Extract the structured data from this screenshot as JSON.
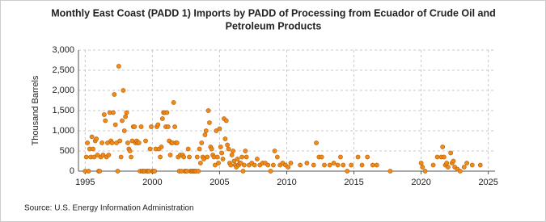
{
  "chart_data": {
    "type": "scatter",
    "title": [
      "Monthly East Coast (PADD 1) Imports by PADD of Processing from Ecuador of Crude Oil and",
      "Petroleum Products"
    ],
    "y_label": "Thousand Barrels",
    "source": "Source: U.S. Energy Information Administration",
    "color": "#f08a1c",
    "grid": true,
    "xlim": [
      1994.5,
      2025.5
    ],
    "ylim": [
      0,
      3000
    ],
    "xticks": [
      1995,
      2000,
      2005,
      2010,
      2015,
      2020,
      2025
    ],
    "yticks": [
      0,
      500,
      {
        "value": 1000,
        "label": "1,000"
      },
      {
        "value": 1500,
        "label": "1,500"
      },
      {
        "value": 2000,
        "label": "2,000"
      },
      {
        "value": 2500,
        "label": "2,500"
      },
      {
        "value": 3000,
        "label": "3,000"
      }
    ],
    "x": [
      1995,
      1995.083,
      1995.167,
      1995.25,
      1995.333,
      1995.417,
      1995.5,
      1995.583,
      1995.667,
      1995.75,
      1995.833,
      1995.917,
      1996,
      1996.083,
      1996.167,
      1996.25,
      1996.333,
      1996.417,
      1996.5,
      1996.583,
      1996.667,
      1996.75,
      1996.833,
      1996.917,
      1997,
      1997.083,
      1997.167,
      1997.25,
      1997.333,
      1997.417,
      1997.5,
      1997.583,
      1997.667,
      1997.75,
      1997.833,
      1997.917,
      1998,
      1998.083,
      1998.167,
      1998.25,
      1998.333,
      1998.417,
      1998.5,
      1998.583,
      1998.667,
      1998.75,
      1998.833,
      1998.917,
      1999,
      1999.083,
      1999.167,
      1999.25,
      1999.333,
      1999.417,
      1999.5,
      1999.583,
      1999.667,
      1999.75,
      1999.833,
      1999.917,
      2000,
      2000.083,
      2000.167,
      2000.25,
      2000.333,
      2000.417,
      2000.5,
      2000.583,
      2000.667,
      2000.75,
      2000.833,
      2000.917,
      2001,
      2001.083,
      2001.167,
      2001.25,
      2001.333,
      2001.417,
      2001.5,
      2001.583,
      2001.667,
      2001.75,
      2001.833,
      2001.917,
      2002,
      2002.083,
      2002.167,
      2002.25,
      2002.333,
      2002.417,
      2002.5,
      2002.583,
      2002.667,
      2002.75,
      2002.833,
      2002.917,
      2003,
      2003.083,
      2003.167,
      2003.25,
      2003.333,
      2003.417,
      2003.5,
      2003.583,
      2003.667,
      2003.75,
      2003.833,
      2003.917,
      2004,
      2004.083,
      2004.167,
      2004.25,
      2004.333,
      2004.417,
      2004.5,
      2004.583,
      2004.667,
      2004.75,
      2004.833,
      2004.917,
      2005,
      2005.083,
      2005.167,
      2005.25,
      2005.333,
      2005.417,
      2005.5,
      2005.583,
      2005.667,
      2005.75,
      2005.833,
      2005.917,
      2006,
      2006.083,
      2006.167,
      2006.25,
      2006.333,
      2006.417,
      2006.5,
      2006.583,
      2006.667,
      2006.75,
      2006.833,
      2006.917,
      2007.0,
      2007.2,
      2007.4,
      2007.6,
      2007.8,
      2008.0,
      2008.2,
      2008.4,
      2008.6,
      2008.8,
      2009.0,
      2009.1,
      2009.3,
      2009.5,
      2009.7,
      2009.9,
      2010.1,
      2010.3,
      2011.0,
      2011.5,
      2012.0,
      2012.2,
      2012.4,
      2012.6,
      2012.8,
      2013.2,
      2013.5,
      2013.8,
      2014.0,
      2014.2,
      2014.5,
      2014.8,
      2015.3,
      2015.6,
      2016.0,
      2016.4,
      2016.7,
      2017.7,
      2020.0,
      2020.1,
      2020.3,
      2020.9,
      2021.2,
      2021.5,
      2021.6,
      2021.7,
      2021.8,
      2021.9,
      2022.0,
      2022.2,
      2022.3,
      2022.4,
      2022.5,
      2022.7,
      2022.9,
      2023.2,
      2023.4,
      2023.8,
      2024.4
    ],
    "values": [
      0,
      350,
      700,
      0,
      550,
      350,
      850,
      550,
      350,
      750,
      800,
      400,
      0,
      0,
      350,
      700,
      400,
      1400,
      1250,
      350,
      700,
      400,
      1450,
      750,
      700,
      1450,
      1900,
      1150,
      700,
      0,
      2600,
      750,
      350,
      1250,
      2000,
      1000,
      1350,
      1450,
      700,
      550,
      500,
      350,
      750,
      1100,
      1100,
      700,
      750,
      700,
      700,
      0,
      1100,
      0,
      0,
      0,
      750,
      0,
      0,
      0,
      550,
      1100,
      0,
      0,
      0,
      550,
      1100,
      1150,
      550,
      350,
      600,
      1300,
      1450,
      1450,
      1100,
      1450,
      1100,
      750,
      400,
      700,
      700,
      1700,
      1100,
      700,
      700,
      350,
      0,
      400,
      0,
      400,
      350,
      0,
      0,
      0,
      550,
      350,
      0,
      0,
      0,
      0,
      0,
      0,
      350,
      0,
      550,
      200,
      700,
      350,
      300,
      900,
      1000,
      350,
      1500,
      1200,
      600,
      550,
      400,
      350,
      150,
      1000,
      350,
      200,
      1050,
      600,
      450,
      300,
      1300,
      800,
      1250,
      650,
      550,
      200,
      150,
      400,
      500,
      250,
      150,
      100,
      300,
      150,
      200,
      200,
      350,
      0,
      150,
      500,
      350,
      150,
      200,
      150,
      300,
      150,
      200,
      200,
      150,
      0,
      150,
      500,
      350,
      150,
      200,
      150,
      100,
      200,
      150,
      200,
      150,
      700,
      350,
      350,
      150,
      150,
      200,
      150,
      350,
      150,
      0,
      150,
      350,
      150,
      350,
      150,
      150,
      0,
      200,
      100,
      0,
      150,
      350,
      350,
      600,
      350,
      150,
      200,
      100,
      450,
      200,
      250,
      100,
      50,
      0,
      100,
      200,
      150,
      150
    ]
  }
}
